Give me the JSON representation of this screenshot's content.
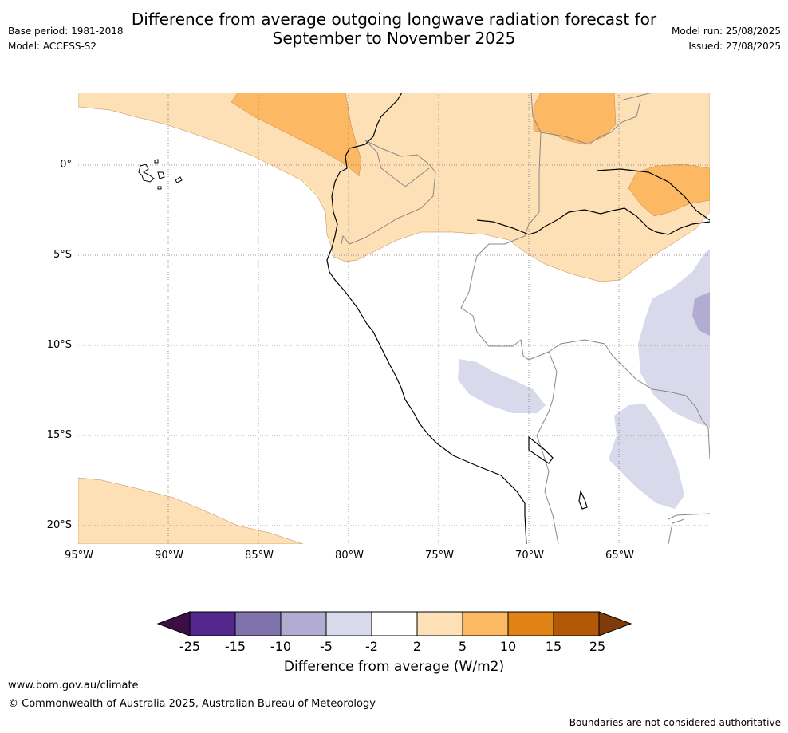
{
  "title_line1": "Difference from average outgoing longwave radiation forecast for",
  "title_line2": "September to November 2025",
  "base_period": "Base period: 1981-2018",
  "model": "Model: ACCESS-S2",
  "model_run": "Model run: 25/08/2025",
  "issued": "Issued: 27/08/2025",
  "lat_labels": [
    "0°",
    "5°S",
    "10°S",
    "15°S",
    "20°S"
  ],
  "lon_labels": [
    "95°W",
    "90°W",
    "85°W",
    "80°W",
    "75°W",
    "70°W",
    "65°W"
  ],
  "colorbar": {
    "label": "Difference from average (W/m2)",
    "ticks": [
      "-25",
      "-15",
      "-10",
      "-5",
      "-2",
      "2",
      "5",
      "10",
      "15",
      "25"
    ],
    "colors": {
      "below_min": "#3b0f45",
      "-25_-15": "#54278f",
      "-15_-10": "#8073ac",
      "-10_-5": "#b2abd2",
      "-5_-2": "#d8daeb",
      "-2_2": "#ffffff",
      "2_5": "#fee0b6",
      "5_10": "#fdb863",
      "10_15": "#e08214",
      "15_25": "#b35806",
      "above_max": "#7f3b08"
    }
  },
  "footer_url": "www.bom.gov.au/climate",
  "footer_copyright": "© Commonwealth of Australia 2025, Australian Bureau of Meteorology",
  "footer_note": "Boundaries are not considered authoritative"
}
